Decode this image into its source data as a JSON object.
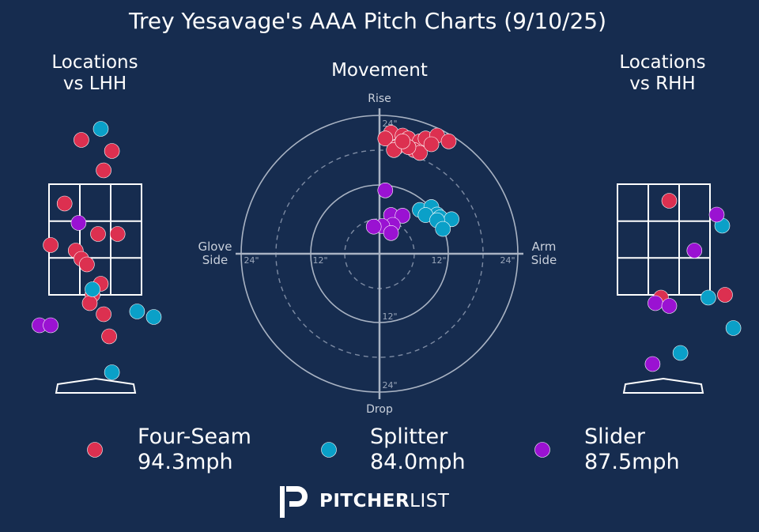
{
  "title": "Trey Yesavage's AAA Pitch Charts (9/10/25)",
  "colors": {
    "background": "#162c4f",
    "four_seam": "#dc3050",
    "splitter": "#0aa0c8",
    "slider": "#9a12d2",
    "grid": "#ffffff",
    "ring": "#a9b3c3"
  },
  "panels": {
    "lhh_title": "Locations\nvs LHH",
    "rhh_title": "Locations\nvs RHH",
    "movement_title": "Movement"
  },
  "movement_labels": {
    "rise": "Rise",
    "drop": "Drop",
    "glove": "Glove\nSide",
    "arm": "Arm\nSide",
    "ring_12": "12\"",
    "ring_24": "24\""
  },
  "brand": {
    "logo_letter": "P",
    "bold": "PITCHER",
    "light": "LIST"
  },
  "chart_data": [
    {
      "type": "scatter",
      "title": "Locations vs LHH",
      "series": [
        {
          "name": "Four-Seam",
          "points": [
            [
              -0.25,
              4.3
            ],
            [
              0.3,
              4.1
            ],
            [
              0.15,
              3.75
            ],
            [
              -0.55,
              3.15
            ],
            [
              0.05,
              2.6
            ],
            [
              0.4,
              2.6
            ],
            [
              -0.8,
              2.4
            ],
            [
              -0.35,
              2.3
            ],
            [
              -0.25,
              2.15
            ],
            [
              -0.15,
              2.05
            ],
            [
              0.1,
              1.7
            ],
            [
              -0.05,
              1.5
            ],
            [
              -0.1,
              1.35
            ],
            [
              0.15,
              1.15
            ],
            [
              0.25,
              0.75
            ]
          ]
        },
        {
          "name": "Splitter",
          "points": [
            [
              0.1,
              4.5
            ],
            [
              0.75,
              1.2
            ],
            [
              1.05,
              1.1
            ],
            [
              0.3,
              0.1
            ],
            [
              -0.05,
              1.6
            ]
          ]
        },
        {
          "name": "Slider",
          "points": [
            [
              -0.3,
              2.8
            ],
            [
              -1.0,
              0.95
            ],
            [
              -0.8,
              0.95
            ]
          ]
        }
      ]
    },
    {
      "type": "scatter",
      "title": "Movement",
      "units": "inches",
      "series": [
        {
          "name": "Four-Seam",
          "points": [
            [
              2,
              21
            ],
            [
              4,
              20.5
            ],
            [
              5,
              20
            ],
            [
              7,
              19.5
            ],
            [
              8,
              20
            ],
            [
              10,
              20.5
            ],
            [
              12,
              19.5
            ],
            [
              1,
              20
            ],
            [
              3,
              18.5
            ],
            [
              6,
              18
            ],
            [
              7,
              17.5
            ],
            [
              2.5,
              18
            ],
            [
              5,
              18.5
            ],
            [
              9,
              19
            ],
            [
              4,
              19.5
            ]
          ]
        },
        {
          "name": "Splitter",
          "points": [
            [
              7,
              7.6
            ],
            [
              9,
              8.1
            ],
            [
              10,
              6.8
            ],
            [
              8,
              6.7
            ],
            [
              10.5,
              6.3
            ],
            [
              12.5,
              6.0
            ],
            [
              10,
              5.8
            ],
            [
              11,
              4.3
            ]
          ]
        },
        {
          "name": "Slider",
          "points": [
            [
              1,
              11
            ],
            [
              2,
              6.7
            ],
            [
              4,
              6.6
            ],
            [
              2.3,
              5.0
            ],
            [
              0.5,
              4.8
            ],
            [
              -1,
              4.7
            ],
            [
              2,
              3.6
            ]
          ]
        }
      ]
    },
    {
      "type": "scatter",
      "title": "Locations vs RHH",
      "series": [
        {
          "name": "Four-Seam",
          "points": [
            [
              0.1,
              3.2
            ],
            [
              -0.05,
              1.45
            ],
            [
              1.1,
              1.5
            ]
          ]
        },
        {
          "name": "Splitter",
          "points": [
            [
              1.05,
              2.75
            ],
            [
              0.8,
              1.45
            ],
            [
              1.25,
              0.9
            ],
            [
              0.3,
              0.45
            ]
          ]
        },
        {
          "name": "Slider",
          "points": [
            [
              0.95,
              2.95
            ],
            [
              0.55,
              2.3
            ],
            [
              -0.15,
              1.35
            ],
            [
              0.1,
              1.3
            ],
            [
              -0.2,
              0.25
            ]
          ]
        }
      ]
    }
  ],
  "legend": [
    {
      "name": "Four-Seam",
      "speed": "94.3mph"
    },
    {
      "name": "Splitter",
      "speed": "84.0mph"
    },
    {
      "name": "Slider",
      "speed": "87.5mph"
    }
  ]
}
